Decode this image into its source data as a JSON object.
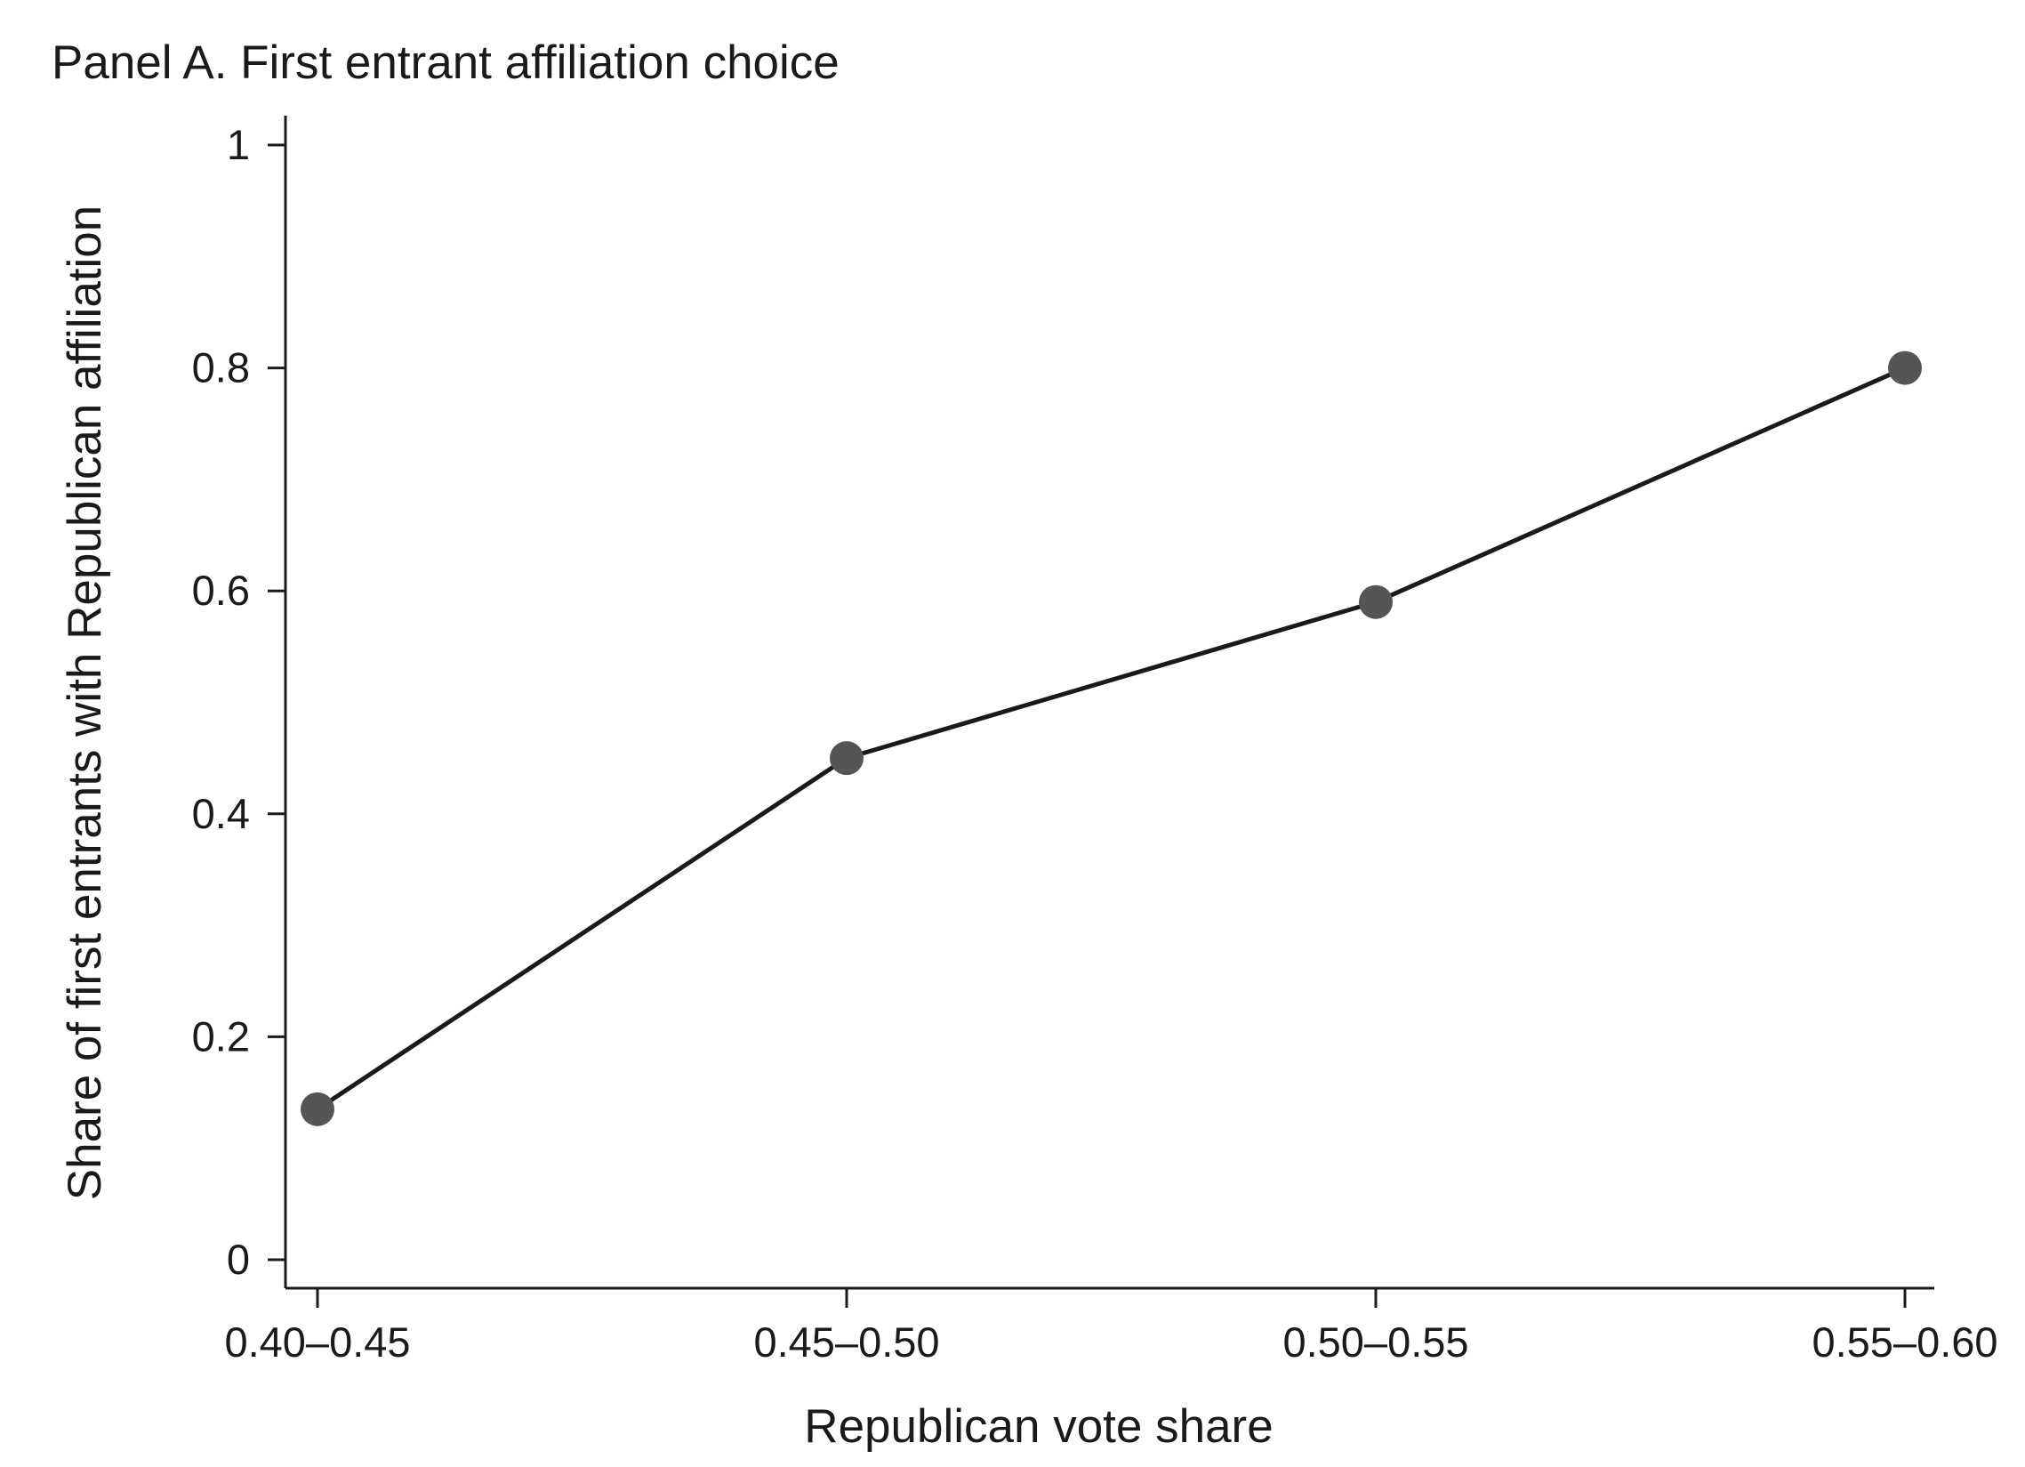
{
  "chart_data": {
    "type": "line",
    "title": "Panel A. First entrant affiliation choice",
    "xlabel": "Republican vote share",
    "ylabel": "Share of first entrants with Republican affiliation",
    "categories": [
      "0.40–0.45",
      "0.45–0.50",
      "0.50–0.55",
      "0.55–0.60"
    ],
    "series": [
      {
        "values": [
          0.135,
          0.45,
          0.59,
          0.8
        ]
      }
    ],
    "ylim": [
      0,
      1
    ],
    "yticks": [
      0,
      0.2,
      0.4,
      0.6,
      0.8,
      1
    ],
    "ytick_labels": [
      "0",
      "0.2",
      "0.4",
      "0.6",
      "0.8",
      "1"
    ],
    "grid": false,
    "legend": "none",
    "colors": {
      "line": "#1a1a1a",
      "marker": "#555557",
      "axis": "#1a1a1a"
    }
  }
}
